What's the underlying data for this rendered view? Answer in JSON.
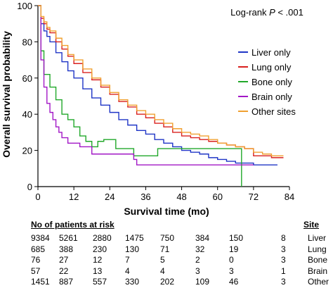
{
  "chart_data": {
    "type": "line",
    "step": true,
    "annotation": {
      "prefix": "Log-rank ",
      "italic": "P",
      "suffix": " < .001"
    },
    "xlabel": "Survival time (mo)",
    "ylabel": "Overall survival probability",
    "xlim": [
      0,
      84
    ],
    "ylim": [
      0,
      100
    ],
    "xticks": [
      0,
      12,
      24,
      36,
      48,
      60,
      72,
      84
    ],
    "yticks": [
      0,
      20,
      40,
      60,
      80,
      100
    ],
    "grid": false,
    "legend_position": "right",
    "series": [
      {
        "name": "Liver only",
        "color": "#1f35c6",
        "points": [
          [
            0,
            100
          ],
          [
            1,
            90
          ],
          [
            2,
            86
          ],
          [
            3,
            83
          ],
          [
            4,
            80
          ],
          [
            6,
            74
          ],
          [
            8,
            69
          ],
          [
            10,
            64
          ],
          [
            12,
            60
          ],
          [
            15,
            54
          ],
          [
            18,
            49
          ],
          [
            21,
            45
          ],
          [
            24,
            41
          ],
          [
            27,
            37
          ],
          [
            30,
            34
          ],
          [
            33,
            31
          ],
          [
            36,
            29
          ],
          [
            39,
            26
          ],
          [
            42,
            24
          ],
          [
            45,
            22
          ],
          [
            48,
            20
          ],
          [
            51,
            19
          ],
          [
            54,
            18
          ],
          [
            57,
            16
          ],
          [
            60,
            15
          ],
          [
            63,
            14
          ],
          [
            66,
            13
          ],
          [
            69,
            13
          ],
          [
            72,
            12
          ],
          [
            75,
            12
          ],
          [
            78,
            12
          ],
          [
            80,
            12
          ]
        ]
      },
      {
        "name": "Lung only",
        "color": "#d9201e",
        "points": [
          [
            0,
            100
          ],
          [
            1,
            93
          ],
          [
            2,
            90
          ],
          [
            3,
            87
          ],
          [
            4,
            85
          ],
          [
            6,
            80
          ],
          [
            8,
            76
          ],
          [
            10,
            72
          ],
          [
            12,
            68
          ],
          [
            15,
            63
          ],
          [
            18,
            59
          ],
          [
            21,
            55
          ],
          [
            24,
            51
          ],
          [
            27,
            47
          ],
          [
            30,
            44
          ],
          [
            33,
            40
          ],
          [
            36,
            38
          ],
          [
            39,
            35
          ],
          [
            42,
            33
          ],
          [
            45,
            30
          ],
          [
            48,
            28
          ],
          [
            51,
            27
          ],
          [
            54,
            26
          ],
          [
            57,
            25
          ],
          [
            60,
            24
          ],
          [
            63,
            23
          ],
          [
            66,
            22
          ],
          [
            69,
            21
          ],
          [
            72,
            17
          ],
          [
            75,
            17
          ],
          [
            78,
            16
          ],
          [
            82,
            16
          ]
        ]
      },
      {
        "name": "Bone only",
        "color": "#21a82a",
        "points": [
          [
            0,
            100
          ],
          [
            1,
            75
          ],
          [
            2,
            62
          ],
          [
            4,
            55
          ],
          [
            6,
            48
          ],
          [
            8,
            40
          ],
          [
            10,
            37
          ],
          [
            12,
            33
          ],
          [
            14,
            28
          ],
          [
            16,
            25
          ],
          [
            18,
            22
          ],
          [
            20,
            25
          ],
          [
            22,
            26
          ],
          [
            24,
            26
          ],
          [
            26,
            21
          ],
          [
            28,
            21
          ],
          [
            30,
            21
          ],
          [
            32,
            17
          ],
          [
            34,
            17
          ],
          [
            36,
            17
          ],
          [
            38,
            17
          ],
          [
            40,
            21
          ],
          [
            44,
            21
          ],
          [
            48,
            21
          ],
          [
            52,
            21
          ],
          [
            56,
            21
          ],
          [
            60,
            21
          ],
          [
            64,
            21
          ],
          [
            67,
            21
          ],
          [
            68,
            21
          ],
          [
            68,
            0
          ]
        ]
      },
      {
        "name": "Brain only",
        "color": "#a217c6",
        "points": [
          [
            0,
            100
          ],
          [
            1,
            70
          ],
          [
            2,
            55
          ],
          [
            3,
            46
          ],
          [
            4,
            41
          ],
          [
            5,
            37
          ],
          [
            6,
            33
          ],
          [
            7,
            30
          ],
          [
            8,
            27
          ],
          [
            9,
            27
          ],
          [
            10,
            24
          ],
          [
            12,
            24
          ],
          [
            14,
            22
          ],
          [
            16,
            22
          ],
          [
            18,
            18
          ],
          [
            20,
            18
          ],
          [
            24,
            18
          ],
          [
            26,
            18
          ],
          [
            30,
            18
          ],
          [
            32,
            15
          ],
          [
            33,
            12
          ],
          [
            36,
            12
          ],
          [
            40,
            12
          ],
          [
            44,
            12
          ],
          [
            48,
            12
          ],
          [
            52,
            12
          ],
          [
            56,
            12
          ],
          [
            60,
            12
          ],
          [
            64,
            12
          ],
          [
            68,
            12
          ],
          [
            72,
            12
          ]
        ]
      },
      {
        "name": "Other sites",
        "color": "#f0a030",
        "points": [
          [
            0,
            100
          ],
          [
            1,
            94
          ],
          [
            2,
            91
          ],
          [
            3,
            88
          ],
          [
            4,
            86
          ],
          [
            6,
            82
          ],
          [
            8,
            78
          ],
          [
            10,
            73
          ],
          [
            12,
            70
          ],
          [
            15,
            65
          ],
          [
            18,
            60
          ],
          [
            21,
            56
          ],
          [
            24,
            52
          ],
          [
            27,
            48
          ],
          [
            30,
            45
          ],
          [
            33,
            42
          ],
          [
            36,
            40
          ],
          [
            39,
            37
          ],
          [
            42,
            35
          ],
          [
            45,
            32
          ],
          [
            48,
            30
          ],
          [
            51,
            29
          ],
          [
            54,
            28
          ],
          [
            57,
            26
          ],
          [
            60,
            24
          ],
          [
            63,
            23
          ],
          [
            66,
            22
          ],
          [
            69,
            21
          ],
          [
            72,
            19
          ],
          [
            75,
            18
          ],
          [
            78,
            17
          ],
          [
            82,
            17
          ]
        ]
      }
    ],
    "risk_table": {
      "header": "No of patients at risk",
      "site_header": "Site",
      "rows": [
        {
          "site": "Liver",
          "values": [
            "9384",
            "5261",
            "2880",
            "1475",
            "750",
            "384",
            "150",
            "8"
          ]
        },
        {
          "site": "Lung",
          "values": [
            "685",
            "388",
            "230",
            "130",
            "71",
            "32",
            "19",
            "3"
          ]
        },
        {
          "site": "Bone",
          "values": [
            "76",
            "27",
            "12",
            "7",
            "5",
            "2",
            "0",
            "3"
          ]
        },
        {
          "site": "Brain",
          "values": [
            "57",
            "22",
            "13",
            "4",
            "4",
            "3",
            "3",
            "1"
          ]
        },
        {
          "site": "Other",
          "values": [
            "1451",
            "887",
            "557",
            "330",
            "202",
            "109",
            "46",
            "3"
          ]
        }
      ]
    }
  }
}
